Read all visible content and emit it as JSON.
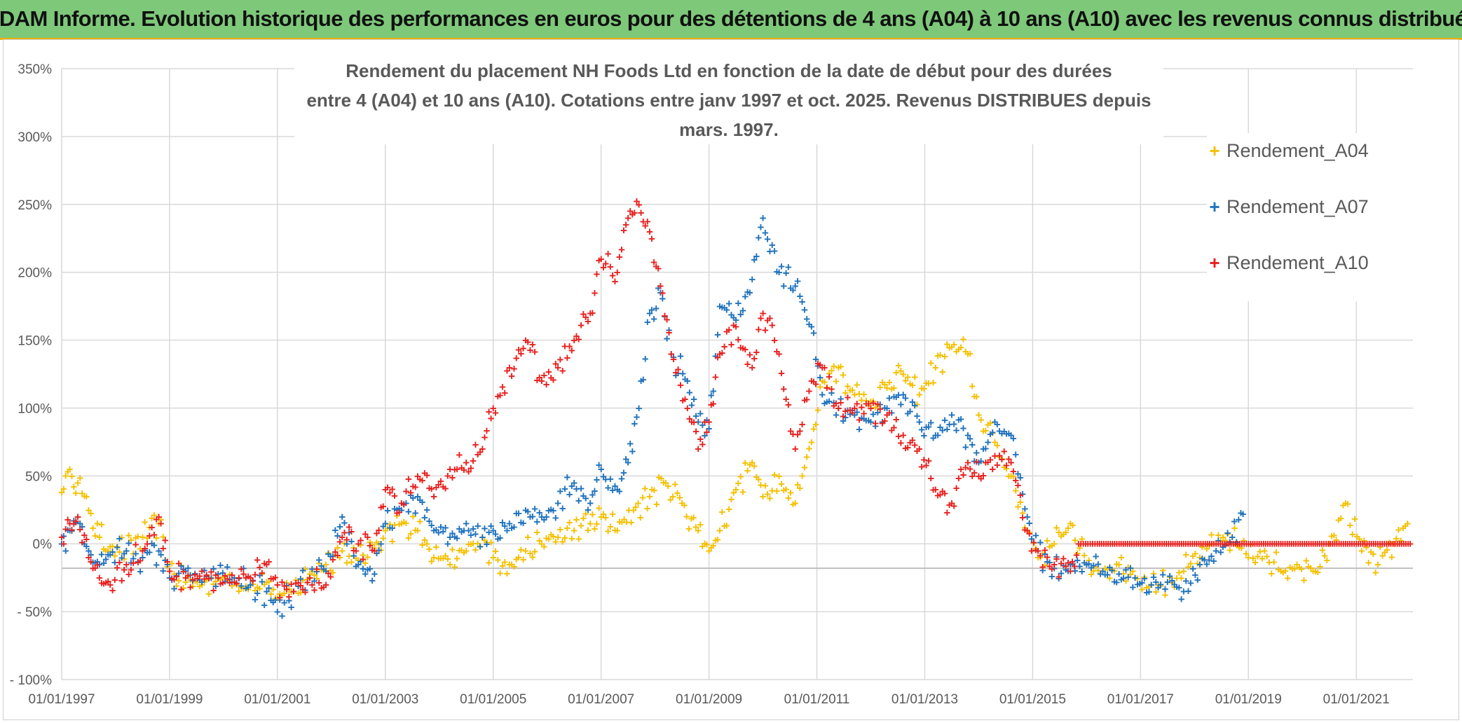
{
  "header": {
    "banner": "ADAM Informe. Evolution historique des performances en euros pour des détentions de 4 ans (A04) à 10 ans (A10) avec les revenus connus distribués"
  },
  "chart_data": {
    "type": "scatter",
    "title_line1": "Rendement du placement NH Foods Ltd en fonction de la date de début pour des durées",
    "title_line2": "entre 4 (A04) et 10 ans (A10). Cotations entre janv 1997 et oct. 2025. Revenus DISTRIBUES depuis mars. 1997.",
    "xlabel": "",
    "ylabel": "",
    "ylim": [
      -100,
      350
    ],
    "xlim": [
      1997.0,
      2022.05
    ],
    "grid": true,
    "legend_position": "right",
    "y_ticks": [
      {
        "value": 350,
        "label": "350%"
      },
      {
        "value": 300,
        "label": "300%"
      },
      {
        "value": 250,
        "label": "250%"
      },
      {
        "value": 200,
        "label": "200%"
      },
      {
        "value": 150,
        "label": "150%"
      },
      {
        "value": 100,
        "label": "100%"
      },
      {
        "value": 50,
        "label": "50%"
      },
      {
        "value": 0,
        "label": "0%"
      },
      {
        "value": -50,
        "label": "- 50%"
      },
      {
        "value": -100,
        "label": "- 100%"
      }
    ],
    "x_ticks": [
      {
        "value": 1997,
        "label": "01/01/1997"
      },
      {
        "value": 1999,
        "label": "01/01/1999"
      },
      {
        "value": 2001,
        "label": "01/01/2001"
      },
      {
        "value": 2003,
        "label": "01/01/2003"
      },
      {
        "value": 2005,
        "label": "01/01/2005"
      },
      {
        "value": 2007,
        "label": "01/01/2007"
      },
      {
        "value": 2009,
        "label": "01/01/2009"
      },
      {
        "value": 2011,
        "label": "01/01/2011"
      },
      {
        "value": 2013,
        "label": "01/01/2013"
      },
      {
        "value": 2015,
        "label": "01/01/2015"
      },
      {
        "value": 2017,
        "label": "01/01/2017"
      },
      {
        "value": 2019,
        "label": "01/01/2019"
      },
      {
        "value": 2021,
        "label": "01/01/2021"
      }
    ],
    "reference_line": -18,
    "series": [
      {
        "name": "Rendement_A04",
        "color": "#f5c000",
        "x": [
          1997.0,
          1997.15,
          1997.3,
          1997.5,
          1997.7,
          1997.9,
          1998.2,
          1998.5,
          1998.8,
          1999.0,
          1999.3,
          1999.6,
          1999.9,
          2000.2,
          2000.5,
          2000.8,
          2001.0,
          2001.3,
          2001.6,
          2001.9,
          2002.2,
          2002.5,
          2002.8,
          2003.0,
          2003.3,
          2003.6,
          2003.9,
          2004.2,
          2004.5,
          2004.8,
          2005.0,
          2005.3,
          2005.6,
          2005.9,
          2006.2,
          2006.5,
          2006.8,
          2007.0,
          2007.3,
          2007.6,
          2007.9,
          2008.2,
          2008.5,
          2008.8,
          2009.0,
          2009.2,
          2009.5,
          2009.8,
          2010.0,
          2010.3,
          2010.6,
          2010.9,
          2011.1,
          2011.4,
          2011.7,
          2012.0,
          2012.3,
          2012.6,
          2012.9,
          2013.2,
          2013.5,
          2013.8,
          2014.0,
          2014.3,
          2014.6,
          2014.9,
          2015.1,
          2015.4,
          2015.7,
          2016.0,
          2016.3,
          2016.6,
          2016.9,
          2017.2,
          2017.5,
          2017.8,
          2018.1,
          2018.4,
          2018.7,
          2019.0,
          2019.3,
          2019.6,
          2019.9,
          2020.2,
          2020.5,
          2020.8,
          2021.1,
          2021.4,
          2021.7,
          2021.95
        ],
        "y": [
          38,
          55,
          45,
          25,
          5,
          -2,
          -5,
          5,
          15,
          -20,
          -28,
          -30,
          -25,
          -28,
          -30,
          -28,
          -40,
          -35,
          -22,
          -15,
          -5,
          -12,
          -3,
          10,
          15,
          10,
          -10,
          -15,
          -5,
          5,
          -10,
          -15,
          -5,
          0,
          5,
          10,
          15,
          20,
          10,
          25,
          35,
          45,
          30,
          10,
          -5,
          10,
          40,
          60,
          35,
          50,
          30,
          75,
          120,
          130,
          110,
          105,
          115,
          125,
          110,
          130,
          145,
          140,
          95,
          75,
          50,
          10,
          -10,
          0,
          15,
          -15,
          -20,
          -15,
          -25,
          -30,
          -28,
          -20,
          -10,
          0,
          5,
          -10,
          -5,
          -20,
          -15,
          -20,
          0,
          30,
          -5,
          -15,
          0,
          15
        ]
      },
      {
        "name": "Rendement_A07",
        "color": "#1f72bd",
        "x": [
          1997.0,
          1997.15,
          1997.3,
          1997.5,
          1997.7,
          1997.9,
          1998.2,
          1998.5,
          1998.8,
          1999.0,
          1999.3,
          1999.6,
          1999.9,
          2000.2,
          2000.5,
          2000.8,
          2001.0,
          2001.3,
          2001.6,
          2001.9,
          2002.2,
          2002.5,
          2002.8,
          2003.0,
          2003.3,
          2003.6,
          2003.9,
          2004.2,
          2004.5,
          2004.8,
          2005.0,
          2005.3,
          2005.6,
          2005.9,
          2006.2,
          2006.5,
          2006.8,
          2007.0,
          2007.3,
          2007.5,
          2007.7,
          2007.9,
          2008.1,
          2008.3,
          2008.6,
          2008.8,
          2009.0,
          2009.2,
          2009.5,
          2009.8,
          2010.0,
          2010.3,
          2010.6,
          2010.9,
          2011.1,
          2011.4,
          2011.7,
          2012.0,
          2012.3,
          2012.6,
          2012.9,
          2013.2,
          2013.5,
          2013.8,
          2014.0,
          2014.3,
          2014.6,
          2014.9,
          2015.1,
          2015.4,
          2015.7,
          2016.0,
          2016.3,
          2016.6,
          2016.9,
          2017.2,
          2017.5,
          2017.8,
          2018.1,
          2018.4,
          2018.7,
          2018.9
        ],
        "y": [
          0,
          10,
          20,
          -5,
          -15,
          -8,
          -5,
          -10,
          -5,
          -25,
          -20,
          -28,
          -22,
          -25,
          -30,
          -35,
          -50,
          -35,
          -25,
          -20,
          20,
          -15,
          -22,
          15,
          25,
          35,
          10,
          5,
          15,
          5,
          10,
          15,
          25,
          20,
          30,
          45,
          30,
          55,
          40,
          60,
          100,
          170,
          185,
          140,
          120,
          90,
          85,
          175,
          165,
          195,
          240,
          200,
          190,
          160,
          110,
          100,
          95,
          90,
          100,
          110,
          90,
          80,
          95,
          80,
          60,
          90,
          80,
          20,
          -5,
          -18,
          -15,
          -15,
          -20,
          -22,
          -25,
          -30,
          -28,
          -35,
          -15,
          -5,
          5,
          22
        ]
      },
      {
        "name": "Rendement_A10",
        "color": "#e8201e",
        "x": [
          1997.0,
          1997.15,
          1997.3,
          1997.5,
          1997.7,
          1997.9,
          1998.2,
          1998.5,
          1998.8,
          1999.0,
          1999.3,
          1999.6,
          1999.9,
          2000.2,
          2000.5,
          2000.8,
          2001.0,
          2001.3,
          2001.6,
          2001.9,
          2002.2,
          2002.5,
          2002.8,
          2003.0,
          2003.3,
          2003.6,
          2003.9,
          2004.2,
          2004.5,
          2004.8,
          2005.0,
          2005.3,
          2005.6,
          2005.9,
          2006.2,
          2006.5,
          2006.8,
          2007.0,
          2007.3,
          2007.5,
          2007.7,
          2007.9,
          2008.1,
          2008.3,
          2008.6,
          2008.8,
          2009.0,
          2009.2,
          2009.5,
          2009.8,
          2010.0,
          2010.3,
          2010.6,
          2010.9,
          2011.1,
          2011.4,
          2011.7,
          2012.0,
          2012.3,
          2012.6,
          2012.9,
          2013.2,
          2013.5,
          2013.8,
          2014.0,
          2014.3,
          2014.6,
          2014.9,
          2015.1,
          2015.4,
          2015.7,
          2015.85,
          2016.2,
          2016.6,
          2017.0,
          2017.4,
          2017.8,
          2018.2,
          2018.6,
          2019.0,
          2019.4,
          2019.8,
          2020.2,
          2020.6,
          2021.0,
          2021.4,
          2021.8,
          2022.0
        ],
        "y": [
          5,
          15,
          20,
          -10,
          -25,
          -30,
          -15,
          -5,
          20,
          -20,
          -25,
          -20,
          -25,
          -28,
          -25,
          -15,
          -30,
          -35,
          -25,
          -30,
          5,
          0,
          -5,
          40,
          30,
          50,
          35,
          55,
          60,
          70,
          100,
          130,
          150,
          120,
          130,
          150,
          170,
          210,
          200,
          240,
          250,
          230,
          190,
          140,
          100,
          70,
          90,
          140,
          160,
          130,
          170,
          140,
          70,
          120,
          130,
          100,
          100,
          100,
          95,
          80,
          70,
          40,
          30,
          60,
          50,
          65,
          60,
          10,
          -5,
          -15,
          -20,
          0,
          0,
          0,
          0,
          0,
          0,
          0,
          0,
          0,
          0,
          0,
          0,
          0,
          0,
          0,
          0,
          0
        ]
      }
    ]
  }
}
